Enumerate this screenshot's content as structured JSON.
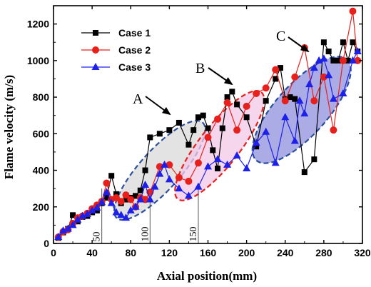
{
  "chart_data": {
    "type": "line",
    "title": "",
    "xlabel": "Axial position(mm)",
    "ylabel": "Flame velocity (m/s)",
    "xlim": [
      0,
      320
    ],
    "ylim": [
      0,
      1300
    ],
    "xticks": [
      0,
      40,
      80,
      120,
      160,
      200,
      240,
      280,
      320
    ],
    "yticks": [
      0,
      200,
      400,
      600,
      800,
      1000,
      1200
    ],
    "legend_position": "top-left",
    "series": [
      {
        "name": "Case 1",
        "color": "#000000",
        "marker": "square",
        "x": [
          5,
          10,
          15,
          20,
          25,
          30,
          35,
          40,
          45,
          50,
          55,
          60,
          65,
          70,
          75,
          80,
          85,
          90,
          95,
          100,
          110,
          120,
          130,
          140,
          145,
          150,
          155,
          160,
          165,
          170,
          175,
          180,
          185,
          190,
          200,
          210,
          220,
          230,
          235,
          240,
          245,
          250,
          260,
          270,
          280,
          285,
          290,
          295,
          300,
          305,
          310,
          315
        ],
        "y": [
          30,
          60,
          80,
          155,
          120,
          145,
          150,
          170,
          180,
          220,
          250,
          370,
          270,
          220,
          240,
          250,
          260,
          290,
          400,
          580,
          600,
          620,
          660,
          540,
          620,
          690,
          700,
          630,
          510,
          410,
          630,
          800,
          830,
          760,
          690,
          530,
          780,
          900,
          960,
          790,
          800,
          790,
          390,
          460,
          1100,
          1050,
          1000,
          1000,
          1100,
          1000,
          1100,
          1050
        ]
      },
      {
        "name": "Case 2",
        "color": "#e8201c",
        "marker": "circle",
        "x": [
          5,
          10,
          15,
          20,
          25,
          30,
          35,
          40,
          45,
          50,
          55,
          60,
          65,
          70,
          75,
          80,
          85,
          90,
          95,
          100,
          110,
          120,
          130,
          140,
          150,
          160,
          170,
          180,
          190,
          200,
          210,
          220,
          230,
          240,
          250,
          260,
          270,
          280,
          290,
          300,
          310,
          315
        ],
        "y": [
          35,
          65,
          75,
          110,
          140,
          150,
          165,
          190,
          210,
          230,
          330,
          240,
          250,
          230,
          265,
          240,
          200,
          250,
          240,
          280,
          420,
          430,
          360,
          340,
          440,
          580,
          680,
          770,
          620,
          750,
          820,
          850,
          950,
          780,
          910,
          1070,
          780,
          910,
          620,
          1000,
          1270,
          1000
        ]
      },
      {
        "name": "Case 3",
        "color": "#1c20e8",
        "marker": "triangle",
        "x": [
          5,
          10,
          15,
          20,
          25,
          30,
          35,
          40,
          45,
          50,
          55,
          60,
          65,
          70,
          75,
          80,
          85,
          90,
          95,
          100,
          105,
          110,
          115,
          120,
          130,
          140,
          150,
          160,
          170,
          180,
          190,
          200,
          210,
          220,
          230,
          240,
          250,
          255,
          260,
          265,
          270,
          275,
          280,
          285,
          290,
          300,
          310,
          315
        ],
        "y": [
          35,
          70,
          80,
          100,
          130,
          150,
          160,
          180,
          195,
          225,
          280,
          220,
          170,
          155,
          140,
          180,
          200,
          240,
          320,
          240,
          310,
          380,
          430,
          350,
          300,
          260,
          310,
          420,
          460,
          430,
          480,
          410,
          550,
          610,
          440,
          690,
          560,
          780,
          710,
          870,
          960,
          1000,
          1010,
          920,
          790,
          820,
          1000,
          1050
        ]
      }
    ],
    "annotations": [
      {
        "label": "A",
        "x": 125,
        "y": 500
      },
      {
        "label": "B",
        "x": 172,
        "y": 600
      },
      {
        "label": "C",
        "x": 255,
        "y": 735
      }
    ],
    "reference_lines": [
      {
        "label": "50",
        "x": 50
      },
      {
        "label": "100",
        "x": 100
      },
      {
        "label": "150",
        "x": 150
      }
    ]
  }
}
